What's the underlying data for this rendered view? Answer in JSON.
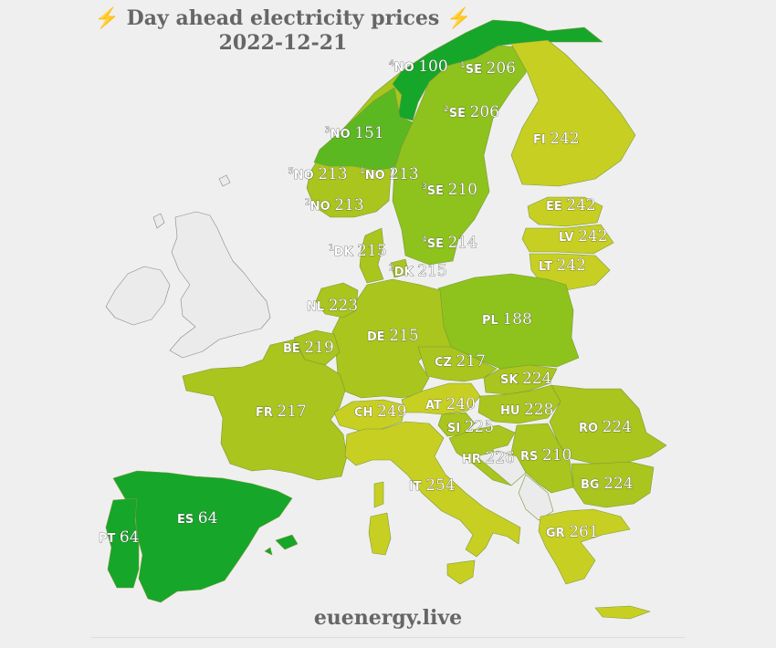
{
  "title": "Day ahead electricity prices",
  "date": "2022-12-21",
  "footer": "euenergy.live",
  "bolt_icon": "lightning-bolt",
  "colors": {
    "low": "#16a62a",
    "mid_low": "#5cb821",
    "mid": "#8ec21c",
    "mid_high": "#a9c51e",
    "high": "#c8cf23",
    "no_data": "#ebebeb"
  },
  "zones": [
    {
      "sup": "4",
      "code": "NO",
      "value": "100"
    },
    {
      "sup": "1",
      "code": "SE",
      "value": "206"
    },
    {
      "sup": "2",
      "code": "SE",
      "value": "206"
    },
    {
      "sup": "3",
      "code": "NO",
      "value": "151"
    },
    {
      "sup": "5",
      "code": "NO",
      "value": "213"
    },
    {
      "sup": "1",
      "code": "NO",
      "value": "213"
    },
    {
      "sup": "2",
      "code": "NO",
      "value": "213"
    },
    {
      "sup": "3",
      "code": "SE",
      "value": "210"
    },
    {
      "sup": "4",
      "code": "SE",
      "value": "214"
    },
    {
      "sup": "1",
      "code": "DK",
      "value": "215"
    },
    {
      "sup": "2",
      "code": "DK",
      "value": "215"
    },
    {
      "sup": "",
      "code": "FI",
      "value": "242"
    },
    {
      "sup": "",
      "code": "EE",
      "value": "242"
    },
    {
      "sup": "",
      "code": "LV",
      "value": "242"
    },
    {
      "sup": "",
      "code": "LT",
      "value": "242"
    },
    {
      "sup": "",
      "code": "NL",
      "value": "223"
    },
    {
      "sup": "",
      "code": "PL",
      "value": "188"
    },
    {
      "sup": "",
      "code": "BE",
      "value": "219"
    },
    {
      "sup": "",
      "code": "DE",
      "value": "215"
    },
    {
      "sup": "",
      "code": "CZ",
      "value": "217"
    },
    {
      "sup": "",
      "code": "SK",
      "value": "224"
    },
    {
      "sup": "",
      "code": "FR",
      "value": "217"
    },
    {
      "sup": "",
      "code": "CH",
      "value": "249"
    },
    {
      "sup": "",
      "code": "AT",
      "value": "240"
    },
    {
      "sup": "",
      "code": "HU",
      "value": "228"
    },
    {
      "sup": "",
      "code": "RO",
      "value": "224"
    },
    {
      "sup": "",
      "code": "SI",
      "value": "225"
    },
    {
      "sup": "",
      "code": "HR",
      "value": "226"
    },
    {
      "sup": "",
      "code": "RS",
      "value": "210"
    },
    {
      "sup": "",
      "code": "BG",
      "value": "224"
    },
    {
      "sup": "",
      "code": "IT",
      "value": "254"
    },
    {
      "sup": "",
      "code": "ES",
      "value": "64"
    },
    {
      "sup": "",
      "code": "PT",
      "value": "64"
    },
    {
      "sup": "",
      "code": "GR",
      "value": "261"
    }
  ]
}
